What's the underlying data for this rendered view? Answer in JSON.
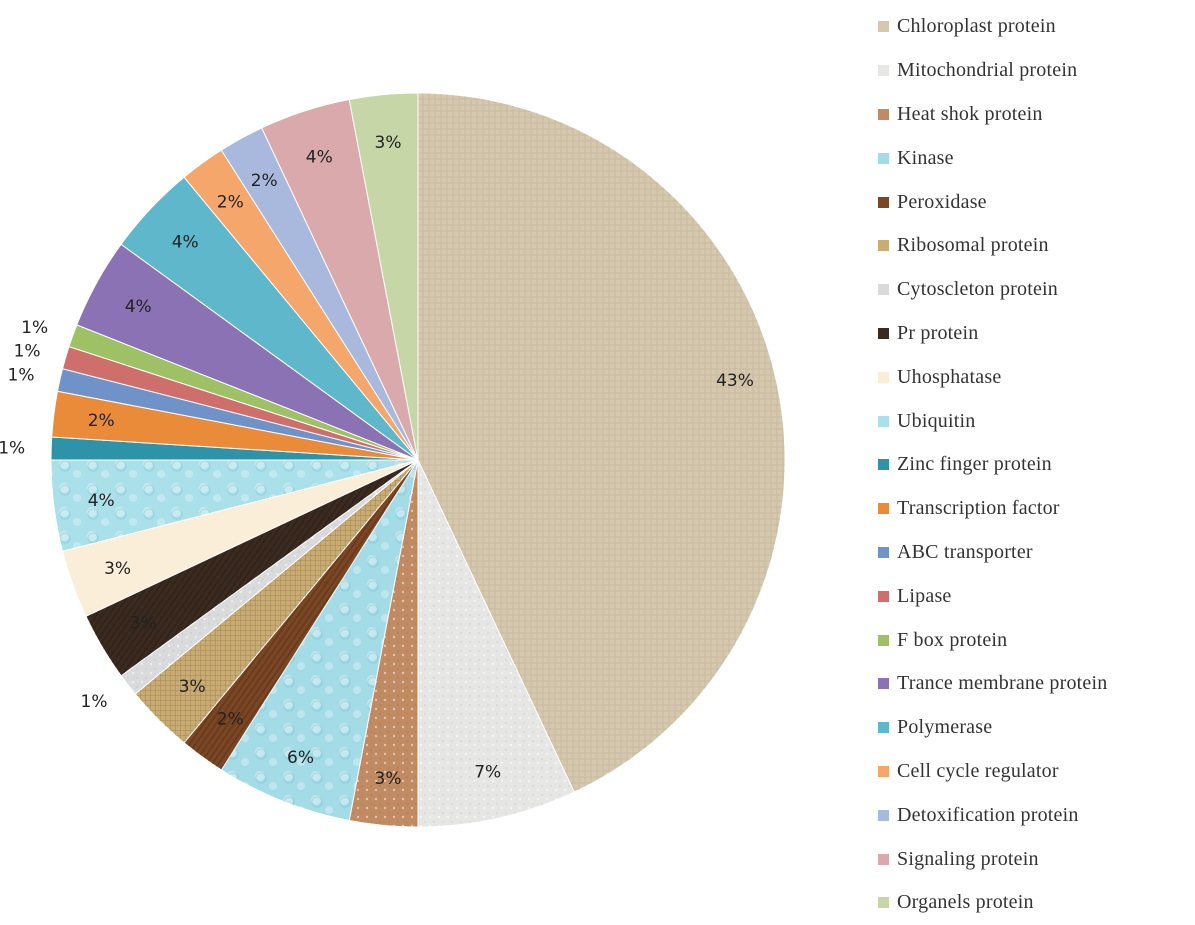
{
  "chart_data": {
    "type": "pie",
    "title": "",
    "unit": "%",
    "slices": [
      {
        "label": "Chloroplast protein",
        "value": 43,
        "display": "43%",
        "color": "#d6c8ad"
      },
      {
        "label": "Mitochondrial protein",
        "value": 7,
        "display": "7%",
        "color": "#e6e6e4"
      },
      {
        "label": "Heat shok protein",
        "value": 3,
        "display": "3%",
        "color": "#c08a62"
      },
      {
        "label": "Kinase",
        "value": 6,
        "display": "6%",
        "color": "#a3dbe6"
      },
      {
        "label": "Peroxidase",
        "value": 2,
        "display": "2%",
        "color": "#7a4624"
      },
      {
        "label": "Ribosomal protein",
        "value": 3,
        "display": "3%",
        "color": "#c9ab74"
      },
      {
        "label": "Cytoscleton protein",
        "value": 1,
        "display": "1%",
        "color": "#d9dadc"
      },
      {
        "label": "Pr protein",
        "value": 3,
        "display": "3%",
        "color": "#3a2a1f"
      },
      {
        "label": "Uhosphatase",
        "value": 3,
        "display": "3%",
        "color": "#faeed9"
      },
      {
        "label": "Ubiquitin",
        "value": 4,
        "display": "4%",
        "color": "#a9e0ea"
      },
      {
        "label": "Zinc finger protein",
        "value": 1,
        "display": "1%",
        "color": "#2e93a9"
      },
      {
        "label": "Transcription factor",
        "value": 2,
        "display": "2%",
        "color": "#ea8b3a"
      },
      {
        "label": "ABC transporter",
        "value": 1,
        "display": "1%",
        "color": "#6f93c9"
      },
      {
        "label": "Lipase",
        "value": 1,
        "display": "1%",
        "color": "#cf6f6c"
      },
      {
        "label": "F box protein",
        "value": 1,
        "display": "1%",
        "color": "#9ec165"
      },
      {
        "label": "Trance membrane protein",
        "value": 4,
        "display": "4%",
        "color": "#8a72b4"
      },
      {
        "label": "Polymerase",
        "value": 4,
        "display": "4%",
        "color": "#5eb7cb"
      },
      {
        "label": "Cell cycle regulator",
        "value": 2,
        "display": "2%",
        "color": "#f5a66b"
      },
      {
        "label": "Detoxification protein",
        "value": 2,
        "display": "2%",
        "color": "#a9b9de"
      },
      {
        "label": "Signaling protein",
        "value": 4,
        "display": "4%",
        "color": "#d9a9ab"
      },
      {
        "label": "Organels protein",
        "value": 3,
        "display": "3%",
        "color": "#c6d6a7"
      }
    ],
    "legend_position": "right"
  }
}
